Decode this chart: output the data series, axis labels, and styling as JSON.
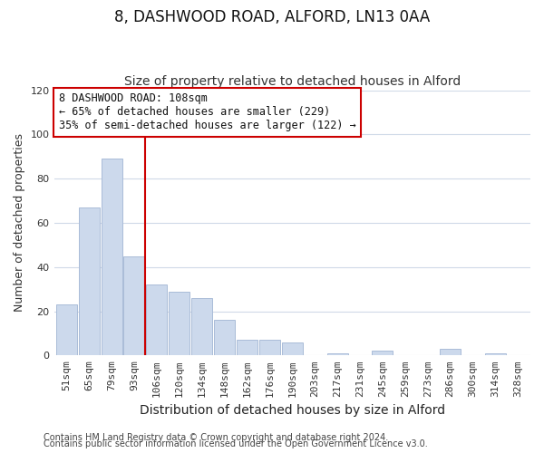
{
  "title": "8, DASHWOOD ROAD, ALFORD, LN13 0AA",
  "subtitle": "Size of property relative to detached houses in Alford",
  "xlabel": "Distribution of detached houses by size in Alford",
  "ylabel": "Number of detached properties",
  "bar_labels": [
    "51sqm",
    "65sqm",
    "79sqm",
    "93sqm",
    "106sqm",
    "120sqm",
    "134sqm",
    "148sqm",
    "162sqm",
    "176sqm",
    "190sqm",
    "203sqm",
    "217sqm",
    "231sqm",
    "245sqm",
    "259sqm",
    "273sqm",
    "286sqm",
    "300sqm",
    "314sqm",
    "328sqm"
  ],
  "bar_values": [
    23,
    67,
    89,
    45,
    32,
    29,
    26,
    16,
    7,
    7,
    6,
    0,
    1,
    0,
    2,
    0,
    0,
    3,
    0,
    1,
    0
  ],
  "bar_color": "#ccd9ec",
  "bar_edge_color": "#aabcd8",
  "vline_index": 4,
  "vline_color": "#cc0000",
  "annotation_line1": "8 DASHWOOD ROAD: 108sqm",
  "annotation_line2": "← 65% of detached houses are smaller (229)",
  "annotation_line3": "35% of semi-detached houses are larger (122) →",
  "annotation_box_color": "#ffffff",
  "annotation_box_edge": "#cc0000",
  "ylim": [
    0,
    120
  ],
  "yticks": [
    0,
    20,
    40,
    60,
    80,
    100,
    120
  ],
  "footnote1": "Contains HM Land Registry data © Crown copyright and database right 2024.",
  "footnote2": "Contains public sector information licensed under the Open Government Licence v3.0.",
  "plot_bg_color": "#ffffff",
  "fig_bg_color": "#ffffff",
  "grid_color": "#d0dae8",
  "title_fontsize": 12,
  "subtitle_fontsize": 10,
  "xlabel_fontsize": 10,
  "ylabel_fontsize": 9,
  "tick_fontsize": 8,
  "annotation_fontsize": 8.5,
  "footnote_fontsize": 7
}
